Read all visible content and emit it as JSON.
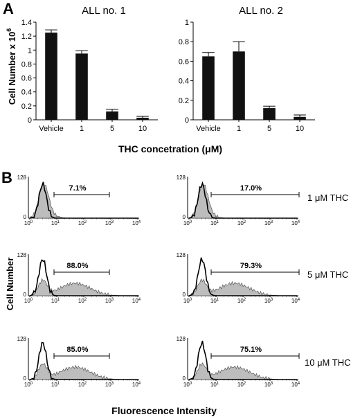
{
  "panel_a_label": "A",
  "panel_b_label": "B",
  "chart_data": [
    {
      "type": "bar",
      "title": "ALL no. 1",
      "categories": [
        "Vehicle",
        "1",
        "5",
        "10"
      ],
      "values": [
        1.25,
        0.95,
        0.12,
        0.03
      ],
      "errors": [
        0.04,
        0.04,
        0.03,
        0.02
      ],
      "ylabel": "Cell Number x 10",
      "ylabel_superscript": "6",
      "ylim": [
        0,
        1.4
      ],
      "yticks": [
        "0",
        "0.2",
        "0.4",
        "0.6",
        "0.8",
        "1",
        "1.2",
        "1.4"
      ],
      "bar_color": "#111111"
    },
    {
      "type": "bar",
      "title": "ALL no. 2",
      "categories": [
        "Vehicle",
        "1",
        "5",
        "10"
      ],
      "values": [
        0.65,
        0.7,
        0.12,
        0.03
      ],
      "errors": [
        0.04,
        0.1,
        0.02,
        0.02
      ],
      "ylim": [
        0,
        1.0
      ],
      "yticks": [
        "0",
        "0.2",
        "0.4",
        "0.6",
        "0.8",
        "1"
      ],
      "bar_color": "#111111"
    }
  ],
  "panel_a_xlabel": "THC concetration (μM)",
  "histograms": {
    "ylabel": "Cell Number",
    "xlabel": "Fluorescence Intensity",
    "y_tick_max": "128",
    "y_tick_min": "0",
    "x_tick_bases": [
      "10",
      "10",
      "10",
      "10",
      "10"
    ],
    "x_tick_exponents": [
      "0",
      "1",
      "2",
      "3",
      "4"
    ],
    "row_labels": [
      "1 μM  THC",
      "5 μM THC",
      "10 μM THC"
    ],
    "percentages": [
      "7.1%",
      "17.0%",
      "88.0%",
      "79.3%",
      "85.0%",
      "75.1%"
    ],
    "shaded_color": "#bdbdbd"
  }
}
